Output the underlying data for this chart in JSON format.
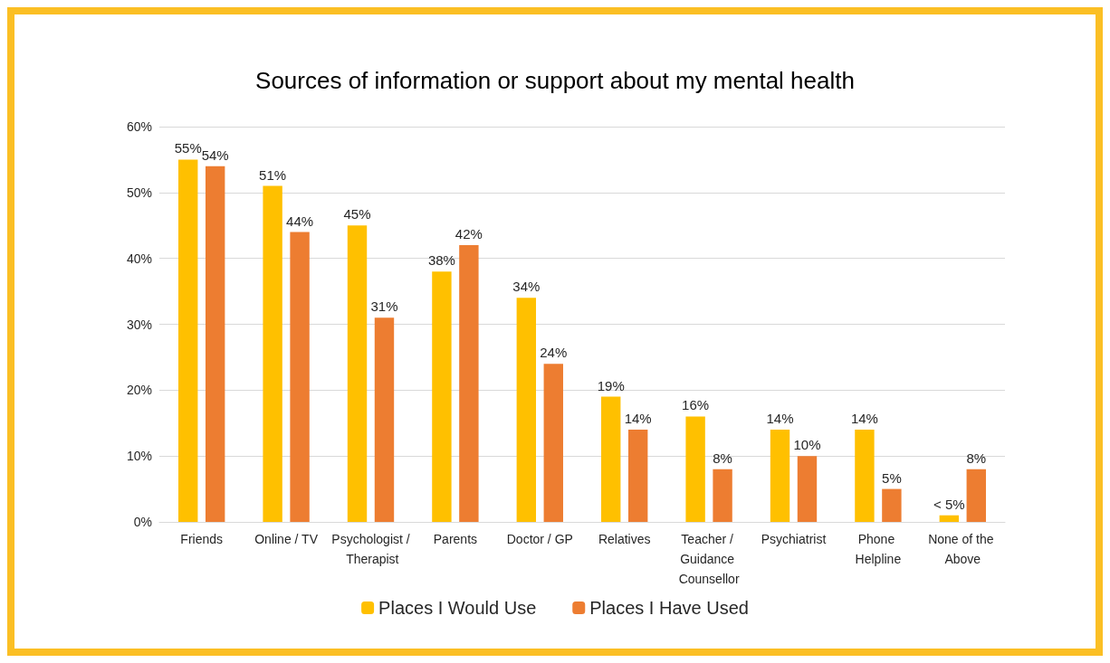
{
  "chart_data": {
    "type": "bar",
    "title": "Sources of information or support about my mental health",
    "categories": [
      "Friends",
      "Online / TV",
      "Psychologist / Therapist",
      "Parents",
      "Doctor / GP",
      "Relatives",
      "Teacher / Guidance Counsellor",
      "Psychiatrist",
      "Phone Helpline",
      "None of the Above"
    ],
    "series": [
      {
        "name": "Places I Would Use",
        "color": "#ffc000",
        "values": [
          55,
          51,
          45,
          38,
          34,
          19,
          16,
          14,
          14,
          1
        ],
        "value_labels": [
          "55%",
          "51%",
          "45%",
          "38%",
          "34%",
          "19%",
          "16%",
          "14%",
          "14%",
          "< 5%"
        ]
      },
      {
        "name": "Places I Have Used",
        "color": "#ed7d31",
        "values": [
          54,
          44,
          31,
          42,
          24,
          14,
          8,
          10,
          5,
          8
        ],
        "value_labels": [
          "54%",
          "44%",
          "31%",
          "42%",
          "24%",
          "14%",
          "8%",
          "10%",
          "5%",
          "8%"
        ]
      }
    ],
    "ylim": [
      0,
      60
    ],
    "yticks": [
      {
        "value": 0,
        "label": "0%"
      },
      {
        "value": 10,
        "label": "10%"
      },
      {
        "value": 20,
        "label": "20%"
      },
      {
        "value": 30,
        "label": "30%"
      },
      {
        "value": 40,
        "label": "40%"
      },
      {
        "value": 50,
        "label": "50%"
      },
      {
        "value": 60,
        "label": "60%"
      }
    ],
    "grid": "y",
    "legend": "bottom"
  }
}
